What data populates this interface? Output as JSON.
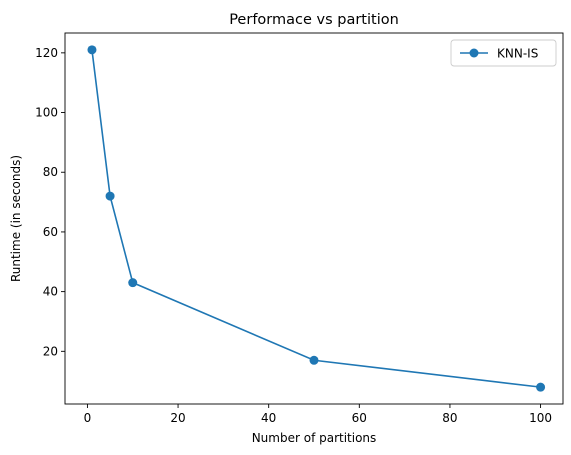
{
  "chart_data": {
    "type": "line",
    "title": "Performace vs partition",
    "xlabel": "Number of partitions",
    "ylabel": "Runtime (in seconds)",
    "xlim": [
      -4.95,
      104.95
    ],
    "ylim": [
      2.35,
      126.65
    ],
    "xticks": [
      0,
      20,
      40,
      60,
      80,
      100
    ],
    "yticks": [
      20,
      40,
      60,
      80,
      100,
      120
    ],
    "grid": false,
    "legend_position": "top-right",
    "series": [
      {
        "name": "KNN-IS",
        "color": "#1f77b4",
        "marker": "circle",
        "x": [
          1,
          5,
          10,
          50,
          100
        ],
        "y": [
          121,
          72,
          43,
          17,
          8
        ]
      }
    ]
  }
}
